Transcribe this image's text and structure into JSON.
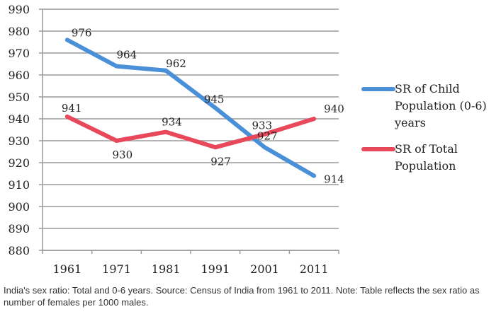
{
  "chart_data": {
    "type": "line",
    "title": "",
    "xlabel": "",
    "ylabel": "",
    "x": [
      "1961",
      "1971",
      "1981",
      "1991",
      "2001",
      "2011"
    ],
    "ylim": [
      880,
      990
    ],
    "yticks": [
      880,
      890,
      900,
      910,
      920,
      930,
      940,
      950,
      960,
      970,
      980,
      990
    ],
    "grid": true,
    "legend_position": "right",
    "series": [
      {
        "name": "SR of Child Population (0-6) years",
        "legend_lines": [
          "SR of Child",
          "Population (0-6)",
          "years"
        ],
        "color": "#4a90d9",
        "values": [
          976,
          964,
          962,
          945,
          927,
          914
        ]
      },
      {
        "name": "SR of Total Population",
        "legend_lines": [
          "SR of Total",
          "Population"
        ],
        "color": "#e8485a",
        "values": [
          941,
          930,
          934,
          927,
          933,
          940
        ]
      }
    ]
  },
  "caption": "India's sex ratio: Total and 0-6 years. Source: Census of India from 1961 to 2011. Note: Table reflects the sex ratio as number of females per 1000 males."
}
